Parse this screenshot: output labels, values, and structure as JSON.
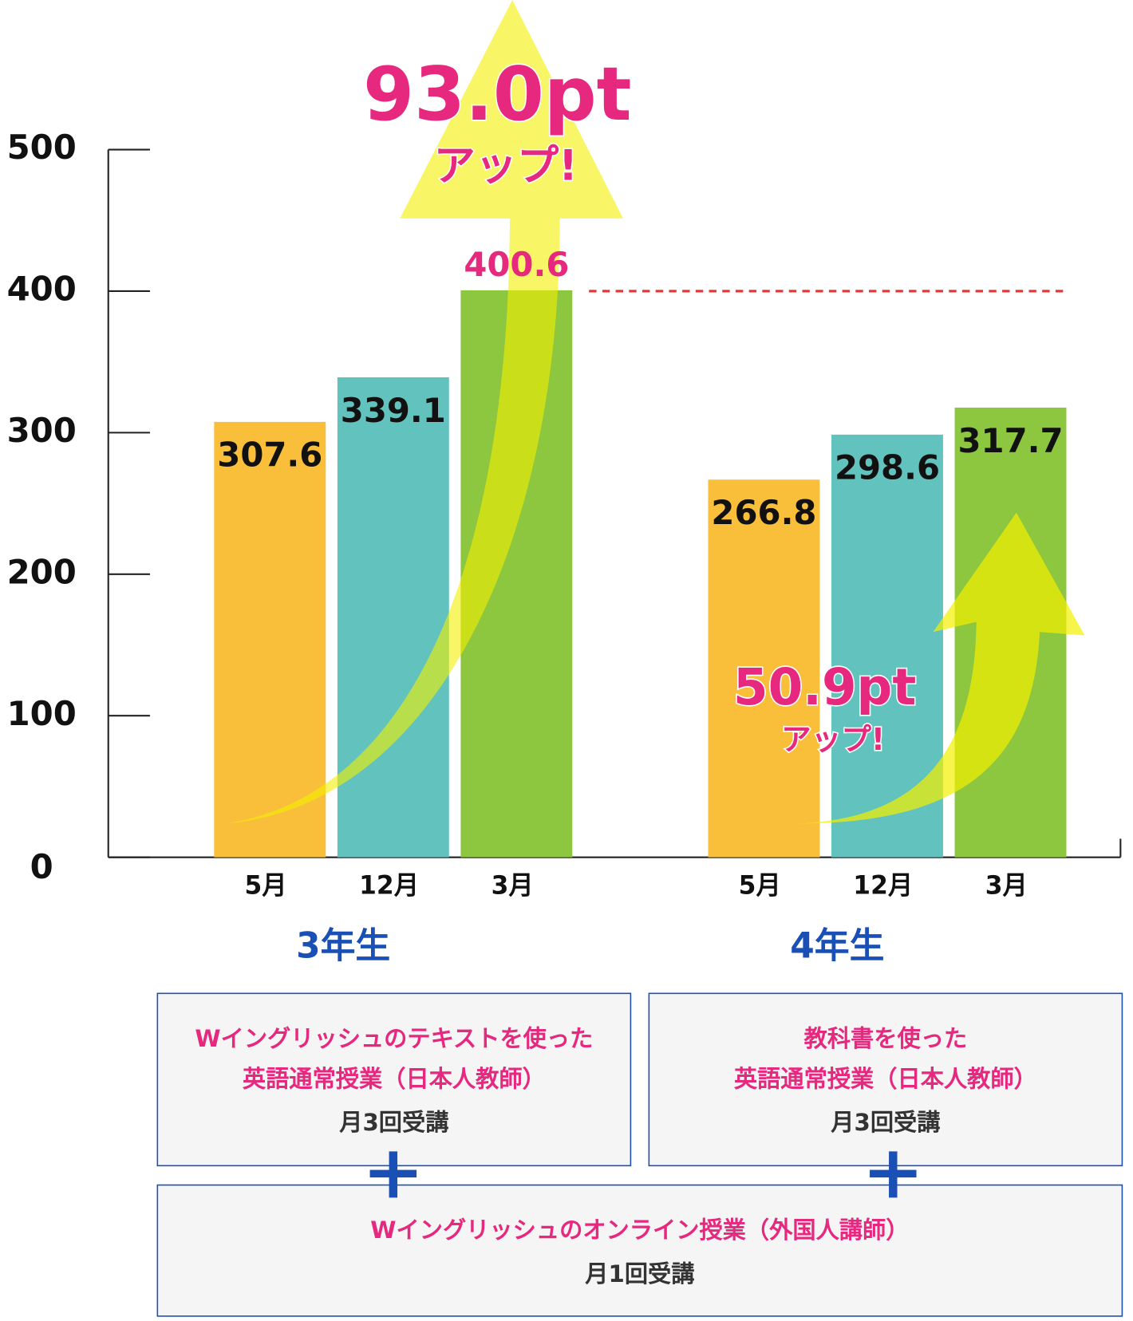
{
  "chart_data": {
    "type": "bar",
    "ylim": [
      0,
      500
    ],
    "yticks": [
      0,
      100,
      200,
      300,
      400,
      500
    ],
    "reference_line": 400,
    "reference_color": "#e8322f",
    "colors": [
      "#f9bf3b",
      "#62c2bd",
      "#8dc63f"
    ],
    "groups": [
      {
        "name": "3年生",
        "categories": [
          "5月",
          "12月",
          "3月"
        ],
        "values": [
          307.6,
          339.1,
          400.6
        ],
        "annotation": {
          "value": "93.0pt",
          "label": "アップ!"
        }
      },
      {
        "name": "4年生",
        "categories": [
          "5月",
          "12月",
          "3月"
        ],
        "values": [
          266.8,
          298.6,
          317.7
        ],
        "annotation": {
          "value": "50.9pt",
          "label": "アップ!"
        }
      }
    ]
  },
  "boxes": [
    {
      "lines": [
        "Wイングリッシュのテキストを使った",
        "英語通常授業（日本人教師）"
      ],
      "note": "月3回受講"
    },
    {
      "lines": [
        "教科書を使った",
        "英語通常授業（日本人教師）"
      ],
      "note": "月3回受講"
    },
    {
      "lines": [
        "Wイングリッシュのオンライン授業（外国人講師）"
      ],
      "note": "月1回受講"
    }
  ]
}
